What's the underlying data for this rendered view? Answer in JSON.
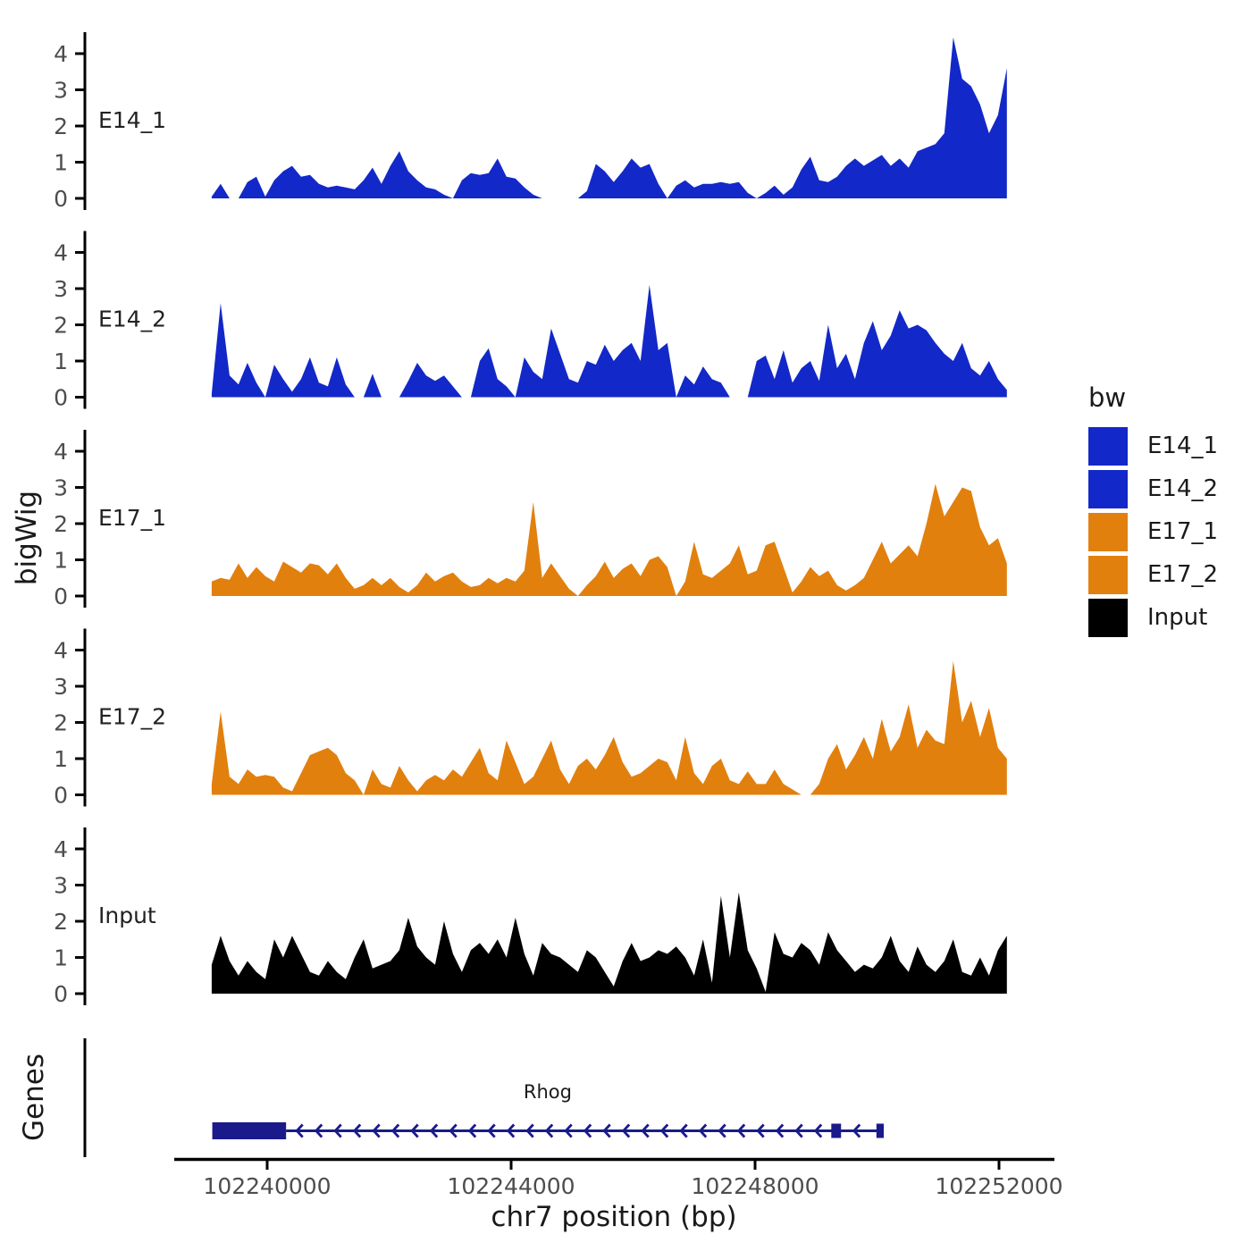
{
  "figure": {
    "ylabel_tracks": "bigWig",
    "ylabel_genes": "Genes",
    "xlabel": "chr7 position (bp)"
  },
  "legend": {
    "title": "bw",
    "items": [
      {
        "label": "E14_1",
        "color": "#1328C8"
      },
      {
        "label": "E14_2",
        "color": "#1328C8"
      },
      {
        "label": "E17_1",
        "color": "#E2800E"
      },
      {
        "label": "E17_2",
        "color": "#E2800E"
      },
      {
        "label": "Input",
        "color": "#000000"
      }
    ]
  },
  "chart_data": {
    "type": "area",
    "title": "",
    "xlabel": "chr7 position (bp)",
    "ylabel": "bigWig",
    "facet_labels": [
      "E14_1",
      "E14_2",
      "E17_1",
      "E17_2",
      "Input",
      "Genes"
    ],
    "x_start_bp": 102239090,
    "x_step_bp": 146.5,
    "x_ticks": [
      102240000,
      102244000,
      102248000,
      102252000
    ],
    "xlim": [
      102238500,
      102252900
    ],
    "y_ticks": [
      0,
      1,
      2,
      3,
      4
    ],
    "ylim": [
      0,
      4.6
    ],
    "grid": false,
    "legend_position": "right",
    "series": [
      {
        "name": "E14_1",
        "color": "#1328C8",
        "values": [
          0.05,
          0.4,
          0,
          0,
          0.45,
          0.6,
          0.05,
          0.5,
          0.75,
          0.9,
          0.6,
          0.65,
          0.4,
          0.3,
          0.35,
          0.3,
          0.25,
          0.5,
          0.85,
          0.4,
          0.9,
          1.3,
          0.75,
          0.5,
          0.3,
          0.25,
          0.1,
          0,
          0.5,
          0.7,
          0.65,
          0.7,
          1.1,
          0.6,
          0.55,
          0.3,
          0.1,
          0,
          0,
          0,
          0,
          0,
          0.2,
          0.95,
          0.75,
          0.45,
          0.75,
          1.1,
          0.85,
          0.95,
          0.4,
          0,
          0.35,
          0.5,
          0.3,
          0.4,
          0.4,
          0.45,
          0.4,
          0.45,
          0.15,
          0,
          0.15,
          0.35,
          0.1,
          0.3,
          0.8,
          1.15,
          0.5,
          0.45,
          0.6,
          0.9,
          1.1,
          0.9,
          1.05,
          1.2,
          0.9,
          1.1,
          0.85,
          1.3,
          1.4,
          1.5,
          1.8,
          4.45,
          3.3,
          3.1,
          2.6,
          1.8,
          2.3,
          3.6
        ]
      },
      {
        "name": "E14_2",
        "color": "#1328C8",
        "values": [
          0.1,
          2.6,
          0.6,
          0.35,
          0.95,
          0.4,
          0,
          0.9,
          0.5,
          0.15,
          0.5,
          1.1,
          0.4,
          0.3,
          1.1,
          0.35,
          0,
          0,
          0.65,
          0,
          0,
          0,
          0.45,
          0.95,
          0.6,
          0.45,
          0.6,
          0.3,
          0,
          0,
          1.0,
          1.35,
          0.5,
          0.3,
          0,
          1.1,
          0.7,
          0.5,
          1.9,
          1.2,
          0.5,
          0.4,
          1.0,
          0.9,
          1.45,
          1.0,
          1.3,
          1.5,
          1.0,
          3.1,
          1.3,
          1.5,
          0,
          0.6,
          0.35,
          0.85,
          0.5,
          0.4,
          0,
          0,
          0,
          1.0,
          1.15,
          0.5,
          1.3,
          0.4,
          0.8,
          1.0,
          0.45,
          2.0,
          0.8,
          1.2,
          0.5,
          1.5,
          2.1,
          1.3,
          1.7,
          2.4,
          1.9,
          2.0,
          1.85,
          1.5,
          1.2,
          1.0,
          1.5,
          0.8,
          0.6,
          1.0,
          0.5,
          0.2
        ]
      },
      {
        "name": "E17_1",
        "color": "#E2800E",
        "values": [
          0.4,
          0.5,
          0.45,
          0.9,
          0.5,
          0.8,
          0.55,
          0.4,
          0.95,
          0.8,
          0.65,
          0.9,
          0.85,
          0.6,
          0.9,
          0.5,
          0.2,
          0.3,
          0.5,
          0.3,
          0.5,
          0.25,
          0.1,
          0.3,
          0.65,
          0.4,
          0.55,
          0.65,
          0.4,
          0.25,
          0.3,
          0.5,
          0.35,
          0.5,
          0.4,
          0.7,
          2.6,
          0.5,
          0.9,
          0.55,
          0.2,
          0,
          0.3,
          0.55,
          0.95,
          0.5,
          0.75,
          0.9,
          0.55,
          1.0,
          1.1,
          0.8,
          0,
          0.4,
          1.5,
          0.6,
          0.5,
          0.7,
          0.9,
          1.4,
          0.6,
          0.7,
          1.4,
          1.5,
          0.8,
          0.1,
          0.4,
          0.8,
          0.55,
          0.7,
          0.3,
          0.15,
          0.3,
          0.5,
          1.0,
          1.5,
          0.9,
          1.15,
          1.4,
          1.1,
          2.0,
          3.1,
          2.2,
          2.6,
          3.0,
          2.9,
          1.9,
          1.4,
          1.6,
          0.9
        ]
      },
      {
        "name": "E17_2",
        "color": "#E2800E",
        "values": [
          0.3,
          2.3,
          0.5,
          0.3,
          0.7,
          0.5,
          0.55,
          0.5,
          0.2,
          0.1,
          0.6,
          1.1,
          1.2,
          1.3,
          1.1,
          0.6,
          0.4,
          0,
          0.7,
          0.3,
          0.2,
          0.8,
          0.4,
          0.1,
          0.4,
          0.55,
          0.4,
          0.7,
          0.5,
          0.9,
          1.3,
          0.6,
          0.4,
          1.5,
          0.9,
          0.3,
          0.5,
          1.0,
          1.5,
          0.7,
          0.3,
          0.8,
          1.0,
          0.7,
          1.1,
          1.6,
          0.9,
          0.5,
          0.6,
          0.8,
          1.0,
          0.9,
          0.4,
          1.6,
          0.6,
          0.3,
          0.8,
          1.0,
          0.4,
          0.3,
          0.65,
          0.3,
          0.3,
          0.7,
          0.3,
          0.15,
          0,
          0,
          0.3,
          1.0,
          1.4,
          0.7,
          1.1,
          1.6,
          1.0,
          2.1,
          1.2,
          1.6,
          2.5,
          1.3,
          1.8,
          1.5,
          1.4,
          3.7,
          2.0,
          2.6,
          1.6,
          2.4,
          1.3,
          1.0
        ]
      },
      {
        "name": "Input",
        "color": "#000000",
        "values": [
          0.8,
          1.6,
          0.9,
          0.5,
          0.9,
          0.6,
          0.4,
          1.5,
          1.0,
          1.6,
          1.1,
          0.6,
          0.5,
          0.9,
          0.6,
          0.4,
          1.0,
          1.5,
          0.7,
          0.8,
          0.9,
          1.2,
          2.1,
          1.3,
          1.0,
          0.8,
          2.0,
          1.1,
          0.6,
          1.2,
          1.4,
          1.1,
          1.5,
          1.0,
          2.1,
          1.1,
          0.5,
          1.4,
          1.1,
          1.0,
          0.8,
          0.6,
          1.2,
          1.0,
          0.6,
          0.2,
          0.9,
          1.4,
          0.9,
          1.0,
          1.2,
          1.1,
          1.3,
          1.0,
          0.5,
          1.5,
          0.3,
          2.7,
          1.0,
          2.8,
          1.2,
          0.7,
          0.05,
          1.7,
          1.1,
          1.0,
          1.4,
          1.2,
          0.8,
          1.7,
          1.2,
          0.9,
          0.6,
          0.8,
          0.7,
          1.0,
          1.6,
          0.9,
          0.6,
          1.3,
          0.8,
          0.6,
          0.9,
          1.5,
          0.6,
          0.5,
          1.0,
          0.5,
          1.2,
          1.6
        ]
      }
    ],
    "gene_track": {
      "panel_label": "Genes",
      "genes": [
        {
          "name": "Rhog",
          "strand": "-",
          "start_bp": 102239100,
          "end_bp": 102250110,
          "thick_exon": [
            102239100,
            102240310
          ],
          "exons": [
            [
              102249250,
              102249410
            ],
            [
              102249990,
              102250110
            ]
          ],
          "color": "#1A1A8B",
          "label_bp": 102244600
        }
      ]
    }
  }
}
